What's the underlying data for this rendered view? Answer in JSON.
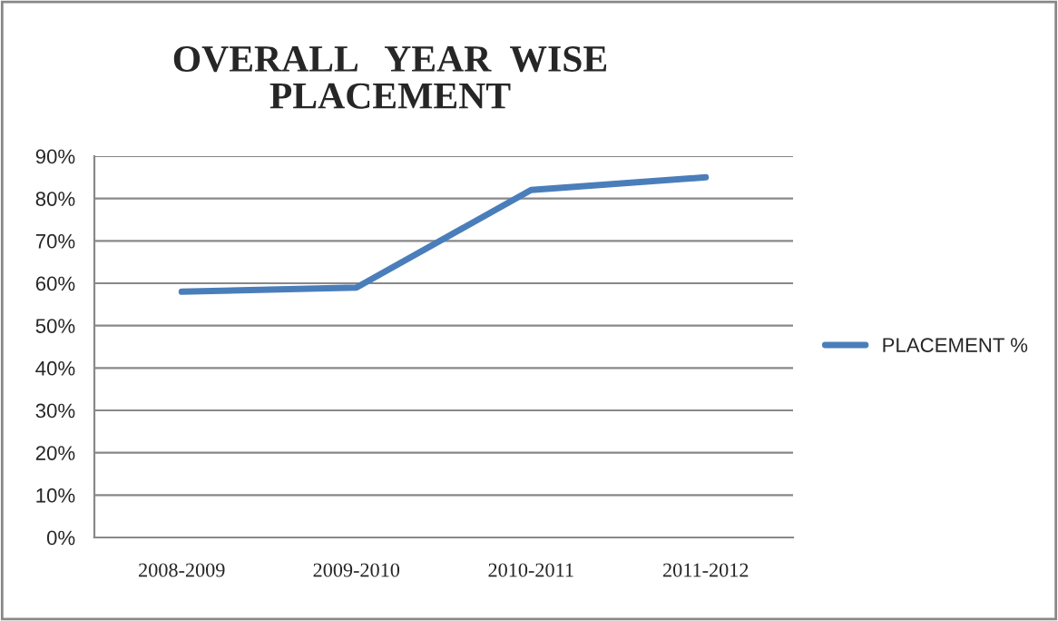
{
  "chart_data": {
    "type": "line",
    "title": "OVERALL   YEAR  WISE\nPLACEMENT",
    "categories": [
      "2008-2009",
      "2009-2010",
      "2010-2011",
      "2011-2012"
    ],
    "series": [
      {
        "name": "PLACEMENT %",
        "color": "#4a7ebb",
        "values": [
          58,
          59,
          82,
          85
        ]
      }
    ],
    "ylim": [
      0,
      90
    ],
    "yticks": [
      {
        "value": 0,
        "label": "0%"
      },
      {
        "value": 10,
        "label": "10%"
      },
      {
        "value": 20,
        "label": "20%"
      },
      {
        "value": 30,
        "label": "30%"
      },
      {
        "value": 40,
        "label": "40%"
      },
      {
        "value": 50,
        "label": "50%"
      },
      {
        "value": 60,
        "label": "60%"
      },
      {
        "value": 70,
        "label": "70%"
      },
      {
        "value": 80,
        "label": "80%"
      },
      {
        "value": 90,
        "label": "90%"
      }
    ],
    "grid": "y",
    "legend": "right",
    "marker": "none",
    "line_style": "solid"
  }
}
